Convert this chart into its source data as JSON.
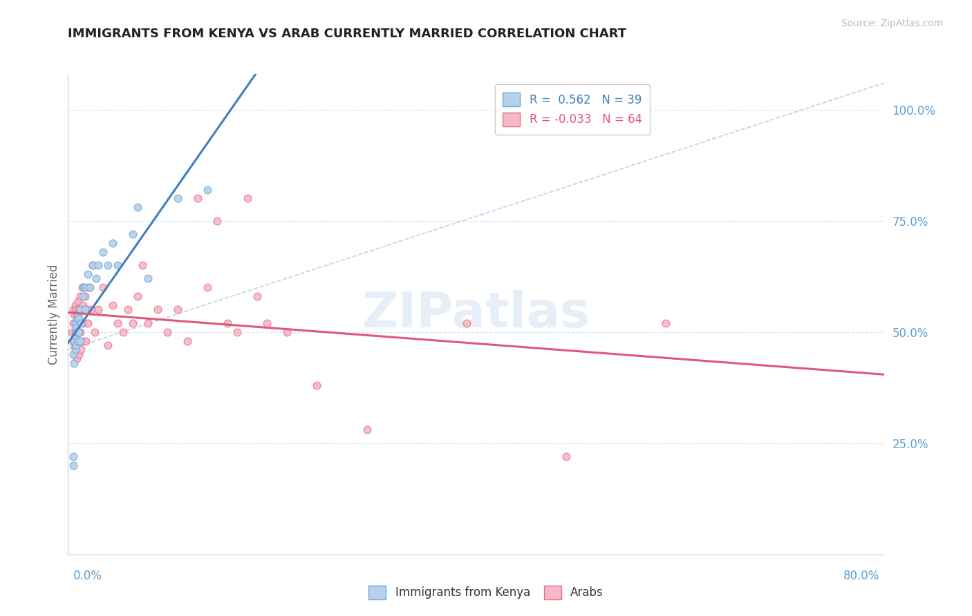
{
  "title": "IMMIGRANTS FROM KENYA VS ARAB CURRENTLY MARRIED CORRELATION CHART",
  "source": "Source: ZipAtlas.com",
  "ylabel": "Currently Married",
  "y_ticks": [
    0.0,
    0.25,
    0.5,
    0.75,
    1.0
  ],
  "y_tick_labels": [
    "",
    "25.0%",
    "50.0%",
    "75.0%",
    "100.0%"
  ],
  "x_lim": [
    0.0,
    0.82
  ],
  "y_lim": [
    0.08,
    1.08
  ],
  "legend_line1": "R =  0.562   N = 39",
  "legend_line2": "R = -0.033   N = 64",
  "color_kenya_fill": "#b8d0e8",
  "color_kenya_edge": "#6aaad4",
  "color_arab_fill": "#f5b8c8",
  "color_arab_edge": "#e8708a",
  "color_line_kenya": "#3d7fbf",
  "color_line_arab": "#e05878",
  "color_dash": "#a8c8e8",
  "color_grid": "#d8e4f0",
  "color_ytick": "#5a9fd4",
  "color_xtick": "#5a9fd4",
  "watermark": "ZIPatlas",
  "kenya_x": [
    0.005,
    0.005,
    0.005,
    0.006,
    0.006,
    0.007,
    0.007,
    0.007,
    0.008,
    0.008,
    0.008,
    0.009,
    0.009,
    0.01,
    0.01,
    0.01,
    0.011,
    0.011,
    0.012,
    0.012,
    0.013,
    0.015,
    0.016,
    0.017,
    0.018,
    0.02,
    0.022,
    0.025,
    0.028,
    0.03,
    0.035,
    0.04,
    0.045,
    0.05,
    0.065,
    0.07,
    0.08,
    0.11,
    0.14
  ],
  "kenya_y": [
    0.22,
    0.2,
    0.45,
    0.43,
    0.48,
    0.46,
    0.5,
    0.52,
    0.47,
    0.49,
    0.51,
    0.5,
    0.53,
    0.48,
    0.5,
    0.54,
    0.5,
    0.53,
    0.48,
    0.55,
    0.52,
    0.58,
    0.6,
    0.55,
    0.6,
    0.63,
    0.6,
    0.65,
    0.62,
    0.65,
    0.68,
    0.65,
    0.7,
    0.65,
    0.72,
    0.78,
    0.62,
    0.8,
    0.82
  ],
  "arab_x": [
    0.004,
    0.005,
    0.005,
    0.005,
    0.006,
    0.006,
    0.007,
    0.007,
    0.007,
    0.008,
    0.008,
    0.009,
    0.009,
    0.009,
    0.01,
    0.01,
    0.01,
    0.011,
    0.011,
    0.012,
    0.012,
    0.013,
    0.013,
    0.014,
    0.015,
    0.015,
    0.016,
    0.017,
    0.018,
    0.019,
    0.02,
    0.021,
    0.023,
    0.025,
    0.027,
    0.03,
    0.035,
    0.04,
    0.045,
    0.05,
    0.055,
    0.06,
    0.065,
    0.07,
    0.075,
    0.08,
    0.09,
    0.1,
    0.11,
    0.12,
    0.13,
    0.14,
    0.15,
    0.16,
    0.17,
    0.18,
    0.19,
    0.2,
    0.22,
    0.25,
    0.3,
    0.4,
    0.5,
    0.6
  ],
  "arab_y": [
    0.5,
    0.48,
    0.52,
    0.55,
    0.47,
    0.54,
    0.48,
    0.5,
    0.56,
    0.47,
    0.55,
    0.44,
    0.5,
    0.54,
    0.48,
    0.52,
    0.57,
    0.45,
    0.55,
    0.5,
    0.58,
    0.46,
    0.55,
    0.6,
    0.48,
    0.56,
    0.52,
    0.58,
    0.48,
    0.55,
    0.52,
    0.6,
    0.55,
    0.65,
    0.5,
    0.55,
    0.6,
    0.47,
    0.56,
    0.52,
    0.5,
    0.55,
    0.52,
    0.58,
    0.65,
    0.52,
    0.55,
    0.5,
    0.55,
    0.48,
    0.8,
    0.6,
    0.75,
    0.52,
    0.5,
    0.8,
    0.58,
    0.52,
    0.5,
    0.38,
    0.28,
    0.52,
    0.22,
    0.52
  ]
}
